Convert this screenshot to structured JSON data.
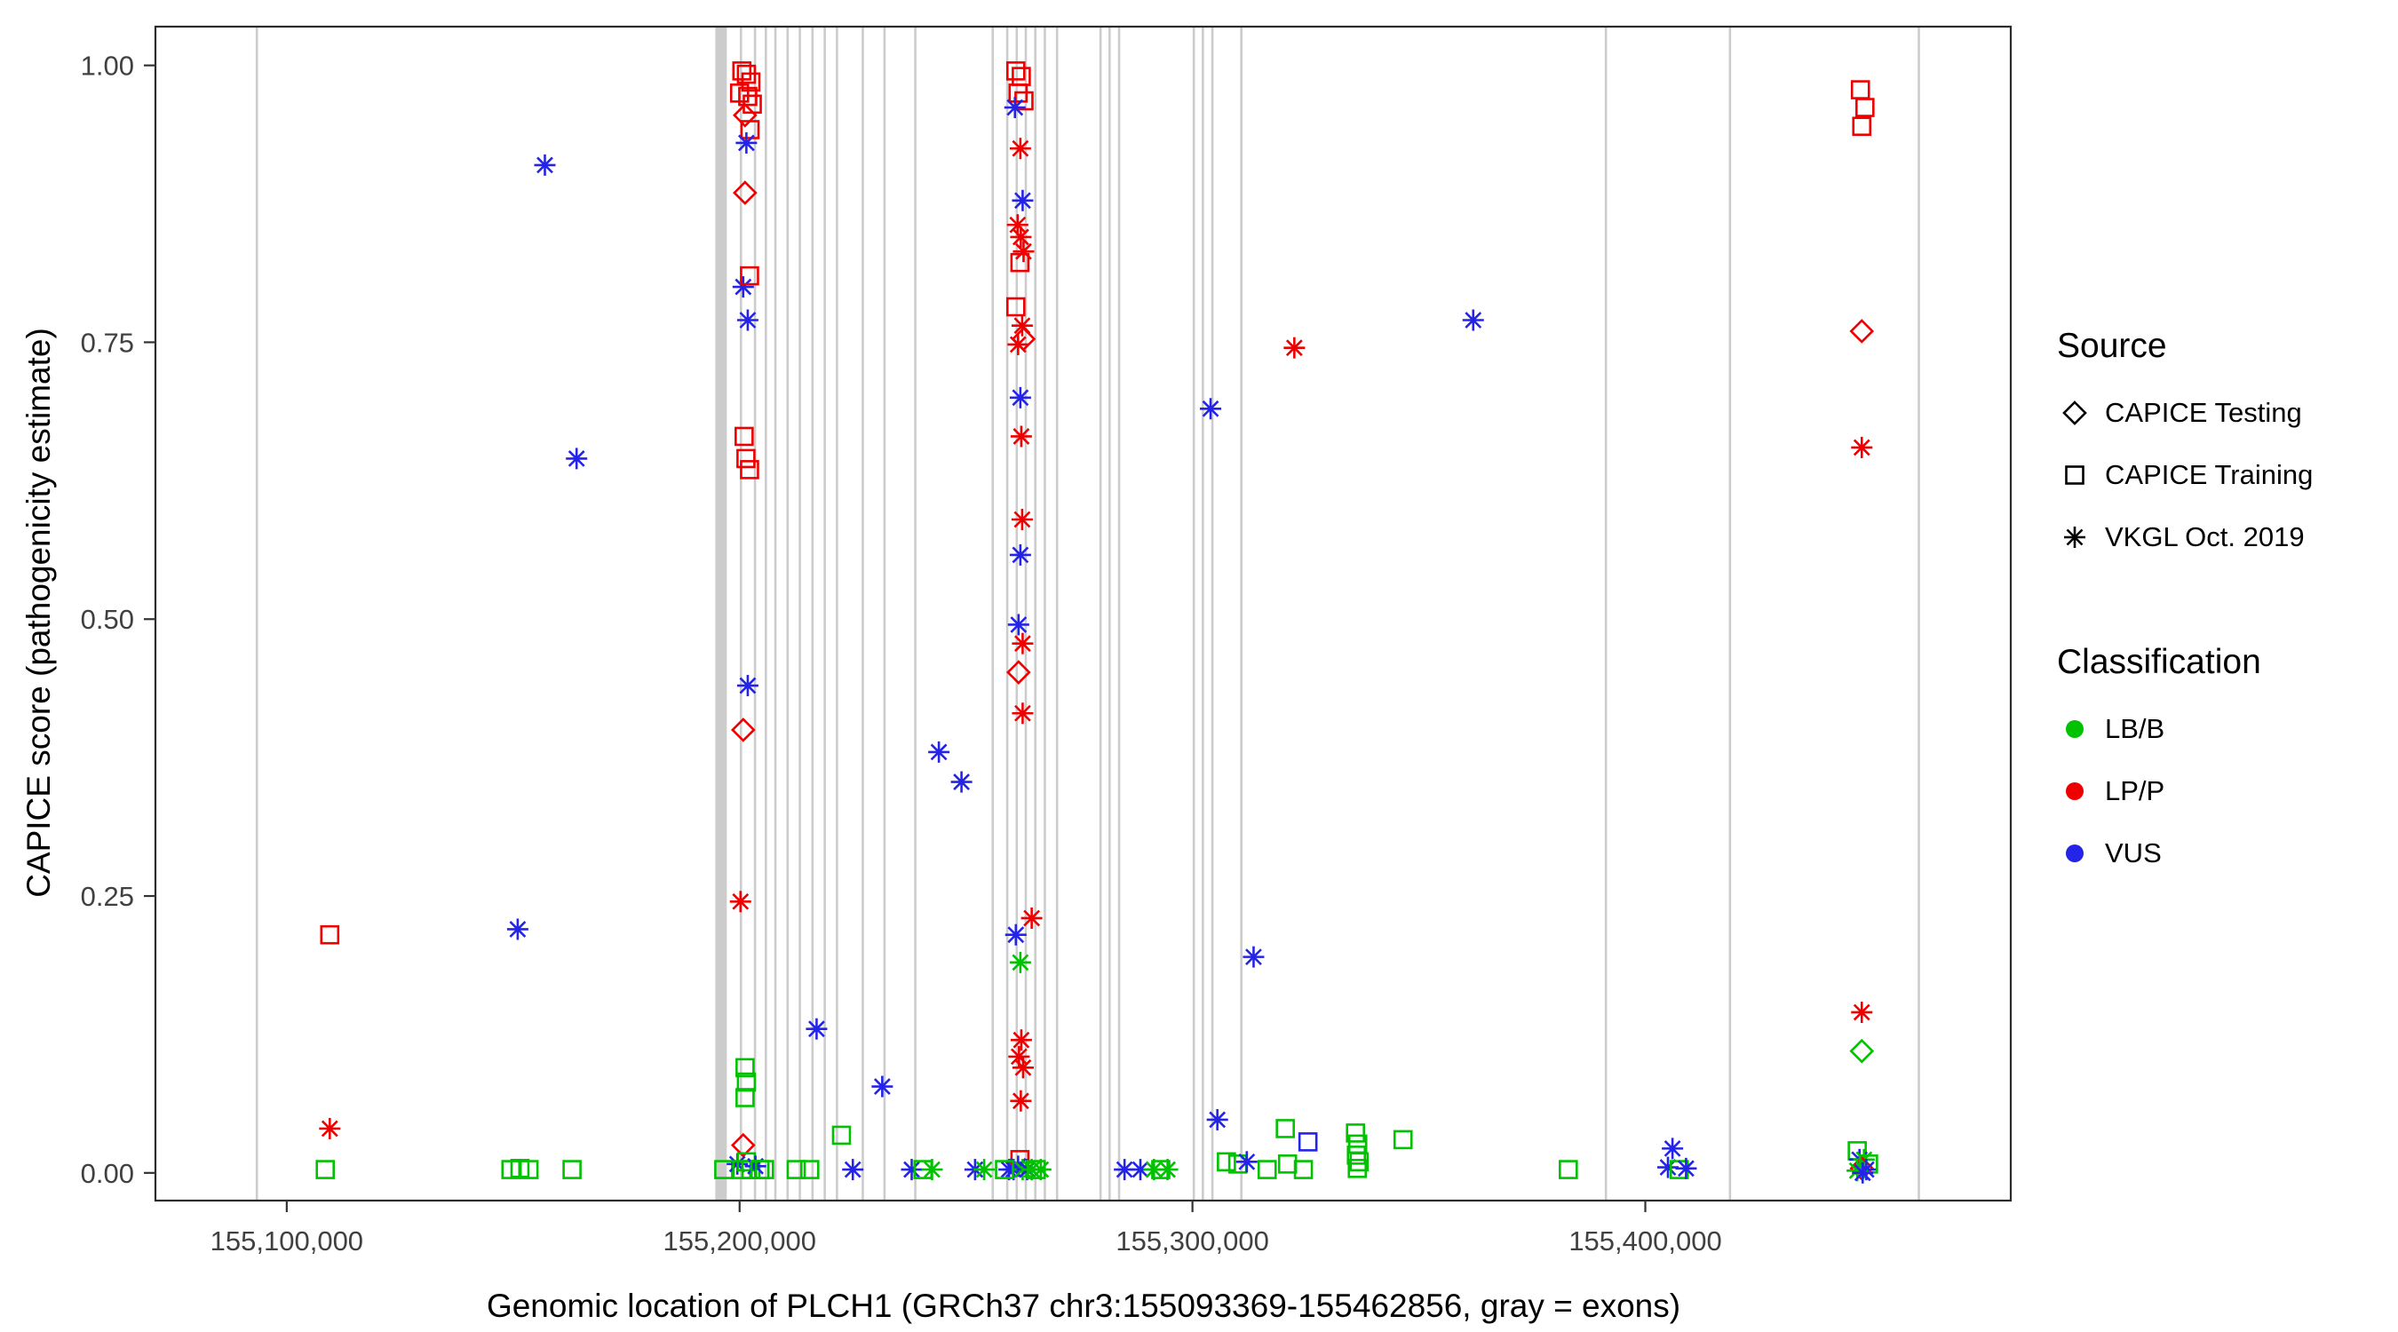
{
  "chart_data": {
    "type": "scatter",
    "title": "",
    "xlabel": "Genomic location of PLCH1 (GRCh37 chr3:155093369-155462856, gray = exons)",
    "ylabel": "CAPICE score (pathogenicity estimate)",
    "xlim": [
      155071000,
      155480700
    ],
    "ylim": [
      -0.025,
      1.035
    ],
    "grid": false,
    "legend_position": "right",
    "x_ticks": {
      "values": [
        155100000,
        155200000,
        155300000,
        155400000
      ],
      "labels": [
        "155,100,000",
        "155,200,000",
        "155,300,000",
        "155,400,000"
      ]
    },
    "y_ticks": {
      "values": [
        0,
        0.25,
        0.5,
        0.75,
        1.0
      ],
      "labels": [
        "0.00",
        "0.25",
        "0.50",
        "0.75",
        "1.00"
      ]
    },
    "legend": {
      "source_title": "Source",
      "classification_title": "Classification"
    },
    "sources": [
      {
        "key": "T",
        "label": "CAPICE Testing",
        "shape": "diamond",
        "icon": "diamond-icon"
      },
      {
        "key": "R",
        "label": "CAPICE Training",
        "shape": "square",
        "icon": "square-icon"
      },
      {
        "key": "V",
        "label": "VKGL Oct. 2019",
        "shape": "asterisk",
        "icon": "asterisk-icon"
      }
    ],
    "classes": [
      {
        "key": "B",
        "label": "LB/B",
        "color": "#00c200",
        "icon": "circle-icon"
      },
      {
        "key": "P",
        "label": "LP/P",
        "color": "#ee0000",
        "icon": "circle-icon"
      },
      {
        "key": "U",
        "label": "VUS",
        "color": "#2424e8",
        "icon": "circle-icon"
      }
    ],
    "exon_color": "#cccccc",
    "gene": {
      "name": "PLCH1",
      "assembly": "GRCh37",
      "chrom": "chr3",
      "start": 155093369,
      "end": 155462856
    },
    "exons": [
      {
        "pos": 155093400
      },
      {
        "pos": 155195900,
        "wide": true
      },
      {
        "pos": 155200300
      },
      {
        "pos": 155203400
      },
      {
        "pos": 155205800
      },
      {
        "pos": 155207900
      },
      {
        "pos": 155210600
      },
      {
        "pos": 155213300
      },
      {
        "pos": 155216100
      },
      {
        "pos": 155218800
      },
      {
        "pos": 155221500
      },
      {
        "pos": 155227200
      },
      {
        "pos": 155232000
      },
      {
        "pos": 155238800
      },
      {
        "pos": 155255900
      },
      {
        "pos": 155259100
      },
      {
        "pos": 155261200
      },
      {
        "pos": 155263200
      },
      {
        "pos": 155265300
      },
      {
        "pos": 155267400
      },
      {
        "pos": 155270100
      },
      {
        "pos": 155279700
      },
      {
        "pos": 155281700
      },
      {
        "pos": 155283800
      },
      {
        "pos": 155300300
      },
      {
        "pos": 155302300
      },
      {
        "pos": 155304400
      },
      {
        "pos": 155310800
      },
      {
        "pos": 155391300
      },
      {
        "pos": 155418700
      },
      {
        "pos": 155460400
      }
    ],
    "points": [
      [
        155109500,
        0.215,
        "R",
        "P"
      ],
      [
        155109500,
        0.04,
        "V",
        "P"
      ],
      [
        155108500,
        0.003,
        "R",
        "B"
      ],
      [
        155149500,
        0.003,
        "R",
        "B"
      ],
      [
        155151500,
        0.004,
        "R",
        "B"
      ],
      [
        155153500,
        0.003,
        "R",
        "B"
      ],
      [
        155163000,
        0.003,
        "R",
        "B"
      ],
      [
        155151000,
        0.22,
        "V",
        "U"
      ],
      [
        155157000,
        0.91,
        "V",
        "U"
      ],
      [
        155164000,
        0.645,
        "V",
        "U"
      ],
      [
        155200500,
        0.995,
        "R",
        "P"
      ],
      [
        155201500,
        0.992,
        "R",
        "P"
      ],
      [
        155202500,
        0.985,
        "R",
        "P"
      ],
      [
        155200000,
        0.975,
        "R",
        "P"
      ],
      [
        155201800,
        0.972,
        "R",
        "P"
      ],
      [
        155202800,
        0.965,
        "R",
        "P"
      ],
      [
        155201200,
        0.955,
        "T",
        "P"
      ],
      [
        155202300,
        0.942,
        "R",
        "P"
      ],
      [
        155201500,
        0.93,
        "V",
        "U"
      ],
      [
        155201200,
        0.885,
        "T",
        "P"
      ],
      [
        155200800,
        0.8,
        "V",
        "U"
      ],
      [
        155202200,
        0.81,
        "R",
        "P"
      ],
      [
        155201800,
        0.77,
        "V",
        "U"
      ],
      [
        155201000,
        0.665,
        "R",
        "P"
      ],
      [
        155201400,
        0.645,
        "R",
        "P"
      ],
      [
        155202200,
        0.635,
        "R",
        "P"
      ],
      [
        155201800,
        0.44,
        "V",
        "U"
      ],
      [
        155200800,
        0.4,
        "T",
        "P"
      ],
      [
        155200200,
        0.245,
        "V",
        "P"
      ],
      [
        155201200,
        0.095,
        "R",
        "B"
      ],
      [
        155201500,
        0.082,
        "R",
        "B"
      ],
      [
        155201200,
        0.068,
        "R",
        "B"
      ],
      [
        155200800,
        0.025,
        "T",
        "P"
      ],
      [
        155196500,
        0.003,
        "R",
        "B"
      ],
      [
        155199500,
        0.008,
        "V",
        "U"
      ],
      [
        155200500,
        0.003,
        "R",
        "B"
      ],
      [
        155201500,
        0.01,
        "R",
        "B"
      ],
      [
        155202500,
        0.003,
        "R",
        "B"
      ],
      [
        155203500,
        0.006,
        "V",
        "U"
      ],
      [
        155204500,
        0.003,
        "R",
        "B"
      ],
      [
        155205500,
        0.003,
        "R",
        "B"
      ],
      [
        155217000,
        0.13,
        "V",
        "U"
      ],
      [
        155212500,
        0.003,
        "R",
        "B"
      ],
      [
        155215500,
        0.003,
        "R",
        "B"
      ],
      [
        155222500,
        0.034,
        "R",
        "B"
      ],
      [
        155225000,
        0.003,
        "V",
        "U"
      ],
      [
        155231500,
        0.078,
        "V",
        "U"
      ],
      [
        155238000,
        0.003,
        "V",
        "U"
      ],
      [
        155240500,
        0.003,
        "R",
        "B"
      ],
      [
        155242500,
        0.003,
        "V",
        "B"
      ],
      [
        155244000,
        0.38,
        "V",
        "U"
      ],
      [
        155249000,
        0.353,
        "V",
        "U"
      ],
      [
        155252000,
        0.003,
        "V",
        "U"
      ],
      [
        155254000,
        0.003,
        "V",
        "B"
      ],
      [
        155261000,
        0.995,
        "R",
        "P"
      ],
      [
        155262200,
        0.99,
        "R",
        "P"
      ],
      [
        155261500,
        0.975,
        "R",
        "P"
      ],
      [
        155262800,
        0.968,
        "R",
        "P"
      ],
      [
        155260800,
        0.962,
        "V",
        "U"
      ],
      [
        155262000,
        0.925,
        "V",
        "P"
      ],
      [
        155262500,
        0.878,
        "V",
        "U"
      ],
      [
        155261400,
        0.856,
        "V",
        "P"
      ],
      [
        155262100,
        0.845,
        "V",
        "P"
      ],
      [
        155262700,
        0.832,
        "V",
        "P"
      ],
      [
        155261900,
        0.822,
        "R",
        "P"
      ],
      [
        155261000,
        0.782,
        "R",
        "P"
      ],
      [
        155262400,
        0.765,
        "V",
        "P"
      ],
      [
        155262700,
        0.753,
        "T",
        "P"
      ],
      [
        155261500,
        0.748,
        "V",
        "P"
      ],
      [
        155262000,
        0.7,
        "V",
        "U"
      ],
      [
        155262200,
        0.665,
        "V",
        "P"
      ],
      [
        155262400,
        0.59,
        "V",
        "P"
      ],
      [
        155262000,
        0.558,
        "V",
        "U"
      ],
      [
        155261600,
        0.495,
        "V",
        "U"
      ],
      [
        155262500,
        0.478,
        "V",
        "P"
      ],
      [
        155261600,
        0.452,
        "T",
        "P"
      ],
      [
        155262500,
        0.415,
        "V",
        "P"
      ],
      [
        155261000,
        0.215,
        "V",
        "U"
      ],
      [
        155264500,
        0.23,
        "V",
        "P"
      ],
      [
        155262000,
        0.19,
        "V",
        "B"
      ],
      [
        155262200,
        0.12,
        "V",
        "P"
      ],
      [
        155261700,
        0.105,
        "V",
        "P"
      ],
      [
        155262600,
        0.095,
        "V",
        "P"
      ],
      [
        155262100,
        0.065,
        "V",
        "P"
      ],
      [
        155261900,
        0.012,
        "R",
        "P"
      ],
      [
        155259500,
        0.003,
        "V",
        "U"
      ],
      [
        155260500,
        0.003,
        "V",
        "U"
      ],
      [
        155261500,
        0.006,
        "V",
        "U"
      ],
      [
        155262500,
        0.003,
        "V",
        "B"
      ],
      [
        155263500,
        0.003,
        "V",
        "U"
      ],
      [
        155258500,
        0.003,
        "R",
        "B"
      ],
      [
        155264500,
        0.003,
        "V",
        "B"
      ],
      [
        155265500,
        0.003,
        "R",
        "B"
      ],
      [
        155266500,
        0.003,
        "V",
        "B"
      ],
      [
        155285000,
        0.003,
        "V",
        "U"
      ],
      [
        155288500,
        0.003,
        "V",
        "U"
      ],
      [
        155291500,
        0.003,
        "V",
        "B"
      ],
      [
        155293000,
        0.003,
        "R",
        "B"
      ],
      [
        155294500,
        0.003,
        "V",
        "B"
      ],
      [
        155304000,
        0.69,
        "V",
        "U"
      ],
      [
        155305500,
        0.048,
        "V",
        "U"
      ],
      [
        155307500,
        0.01,
        "R",
        "B"
      ],
      [
        155310000,
        0.008,
        "R",
        "B"
      ],
      [
        155312000,
        0.01,
        "V",
        "U"
      ],
      [
        155313500,
        0.195,
        "V",
        "U"
      ],
      [
        155316500,
        0.003,
        "R",
        "B"
      ],
      [
        155322500,
        0.745,
        "V",
        "P"
      ],
      [
        155320500,
        0.04,
        "R",
        "B"
      ],
      [
        155321000,
        0.008,
        "R",
        "B"
      ],
      [
        155325500,
        0.028,
        "R",
        "U"
      ],
      [
        155324500,
        0.003,
        "R",
        "B"
      ],
      [
        155336000,
        0.036,
        "R",
        "B"
      ],
      [
        155336500,
        0.026,
        "R",
        "B"
      ],
      [
        155336200,
        0.016,
        "R",
        "B"
      ],
      [
        155336800,
        0.01,
        "R",
        "B"
      ],
      [
        155336400,
        0.004,
        "R",
        "B"
      ],
      [
        155346500,
        0.03,
        "R",
        "B"
      ],
      [
        155362000,
        0.77,
        "V",
        "U"
      ],
      [
        155383000,
        0.003,
        "R",
        "B"
      ],
      [
        155406000,
        0.022,
        "V",
        "U"
      ],
      [
        155405000,
        0.005,
        "V",
        "U"
      ],
      [
        155407500,
        0.003,
        "R",
        "B"
      ],
      [
        155409000,
        0.004,
        "V",
        "U"
      ],
      [
        155447500,
        0.978,
        "R",
        "P"
      ],
      [
        155448500,
        0.962,
        "R",
        "P"
      ],
      [
        155447800,
        0.945,
        "R",
        "P"
      ],
      [
        155447800,
        0.76,
        "T",
        "P"
      ],
      [
        155447800,
        0.655,
        "V",
        "P"
      ],
      [
        155447800,
        0.145,
        "V",
        "P"
      ],
      [
        155447800,
        0.11,
        "T",
        "B"
      ],
      [
        155446800,
        0.02,
        "R",
        "B"
      ],
      [
        155447300,
        0.012,
        "V",
        "U"
      ],
      [
        155448300,
        0.012,
        "V",
        "B"
      ],
      [
        155447800,
        0.004,
        "T",
        "P"
      ],
      [
        155448800,
        0.003,
        "V",
        "U"
      ],
      [
        155446800,
        0.002,
        "V",
        "B"
      ],
      [
        155449300,
        0.008,
        "R",
        "B"
      ],
      [
        155448000,
        0.0,
        "V",
        "U"
      ]
    ]
  }
}
